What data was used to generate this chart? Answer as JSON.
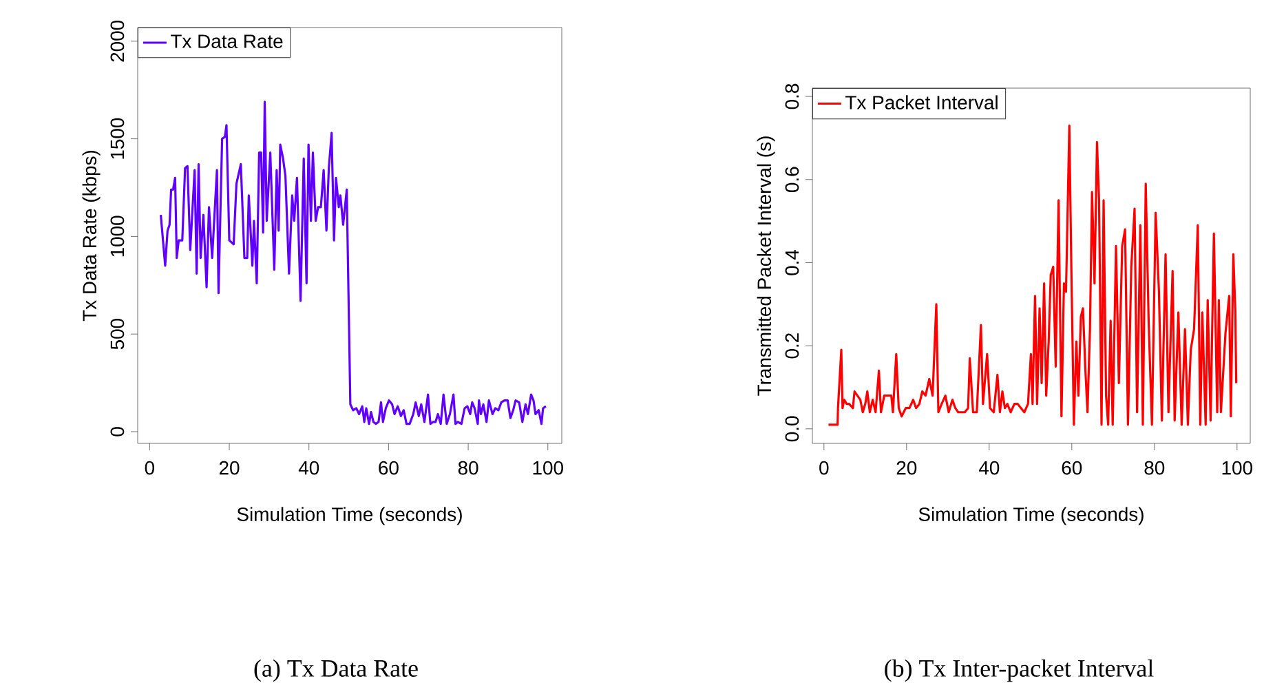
{
  "chart_data": [
    {
      "type": "line",
      "xlabel": "Simulation Time (seconds)",
      "ylabel": "Tx Data Rate (kbps)",
      "legend": "top left",
      "xlim": [
        -3,
        103.5
      ],
      "ylim": [
        -60,
        2070
      ],
      "xticks": [
        0,
        20,
        40,
        60,
        80,
        100
      ],
      "yticks": [
        0,
        500,
        1000,
        1500,
        2000
      ],
      "annotations": [
        "(a) Tx Data Rate"
      ],
      "series": [
        {
          "name": "Tx Data Rate",
          "color": "#6000ff",
          "x": [
            2.8,
            3.9,
            4.5,
            5.0,
            5.4,
            5.9,
            6.4,
            6.8,
            7.3,
            8.2,
            8.9,
            9.5,
            10.2,
            11.3,
            11.8,
            12.3,
            12.8,
            13.5,
            14.3,
            14.9,
            15.7,
            16.9,
            17.3,
            18.2,
            18.9,
            19.3,
            20.0,
            21.1,
            21.8,
            22.9,
            23.8,
            24.5,
            24.9,
            25.8,
            26.2,
            26.9,
            27.5,
            28.0,
            28.5,
            28.9,
            29.4,
            30.3,
            31.3,
            31.9,
            32.4,
            32.8,
            33.5,
            34.1,
            35.0,
            35.8,
            36.3,
            37.0,
            37.9,
            38.7,
            39.4,
            39.9,
            40.5,
            41.0,
            41.7,
            42.3,
            43.0,
            43.7,
            44.4,
            45.0,
            45.7,
            46.3,
            46.8,
            47.5,
            47.9,
            48.6,
            49.5,
            50.4,
            51.1,
            51.9,
            52.6,
            53.4,
            53.9,
            54.4,
            55.1,
            55.6,
            56.2,
            56.8,
            57.5,
            58.1,
            58.6,
            59.3,
            60.1,
            60.9,
            61.5,
            62.3,
            63.1,
            63.8,
            64.5,
            65.3,
            66.2,
            66.8,
            67.6,
            68.2,
            69.0,
            69.9,
            70.5,
            71.2,
            71.8,
            72.4,
            73.1,
            73.8,
            74.6,
            75.4,
            76.3,
            76.8,
            77.4,
            78.3,
            79.1,
            79.8,
            80.5,
            81.0,
            81.6,
            82.4,
            82.7,
            83.2,
            83.8,
            84.6,
            85.2,
            86.1,
            86.8,
            87.6,
            88.3,
            89.1,
            89.9,
            90.6,
            91.3,
            91.9,
            92.8,
            93.6,
            94.4,
            95.0,
            95.8,
            96.4,
            96.9,
            97.7,
            98.4,
            98.8,
            99.5
          ],
          "values": [
            1110,
            850,
            1030,
            1060,
            1240,
            1240,
            1300,
            890,
            980,
            980,
            1350,
            1360,
            930,
            1340,
            810,
            1370,
            890,
            1110,
            740,
            1150,
            890,
            1340,
            710,
            1500,
            1510,
            1570,
            980,
            960,
            1270,
            1370,
            890,
            890,
            1210,
            850,
            1080,
            760,
            1430,
            1430,
            1020,
            1690,
            1080,
            1430,
            830,
            1340,
            1030,
            1470,
            1400,
            1310,
            810,
            1210,
            1080,
            1300,
            670,
            1400,
            760,
            1470,
            1080,
            1430,
            1080,
            1150,
            1150,
            1340,
            1030,
            1350,
            1530,
            980,
            1300,
            1150,
            1210,
            1060,
            1240,
            140,
            110,
            120,
            90,
            130,
            50,
            120,
            40,
            100,
            50,
            40,
            50,
            150,
            50,
            120,
            160,
            140,
            90,
            130,
            80,
            110,
            40,
            40,
            90,
            150,
            80,
            140,
            50,
            190,
            40,
            50,
            50,
            90,
            40,
            190,
            40,
            90,
            190,
            40,
            50,
            40,
            120,
            130,
            90,
            150,
            120,
            40,
            160,
            90,
            140,
            50,
            160,
            90,
            120,
            110,
            150,
            160,
            160,
            70,
            110,
            160,
            150,
            50,
            140,
            90,
            190,
            160,
            90,
            110,
            40,
            120,
            130
          ]
        }
      ]
    },
    {
      "type": "line",
      "xlabel": "Simulation Time (seconds)",
      "ylabel": "Transmitted Packet Interval (s)",
      "legend": "top left",
      "xlim": [
        -2.8,
        103.2
      ],
      "ylim": [
        -0.035,
        0.82
      ],
      "xticks": [
        0,
        20,
        40,
        60,
        80,
        100
      ],
      "yticks": [
        {
          "value": 0,
          "label": "0.0"
        },
        0.2,
        0.4,
        0.6,
        0.8
      ],
      "annotations": [
        "(b) Tx Inter-packet Interval"
      ],
      "series": [
        {
          "name": "Tx Packet Interval",
          "color": "#ff0000",
          "x": [
            1.1,
            3.3,
            3.4,
            4.2,
            4.5,
            4.9,
            5.5,
            6.1,
            7.0,
            7.4,
            8.1,
            8.8,
            9.4,
            10.0,
            10.5,
            11.1,
            11.8,
            12.5,
            13.3,
            13.8,
            14.6,
            15.5,
            16.3,
            16.7,
            17.5,
            18.1,
            18.8,
            19.8,
            20.7,
            21.6,
            22.3,
            23.1,
            23.8,
            24.6,
            25.5,
            26.3,
            27.2,
            27.7,
            28.5,
            29.4,
            30.2,
            31.1,
            31.8,
            32.5,
            33.4,
            34.1,
            34.9,
            35.3,
            36.1,
            37.0,
            38.0,
            38.5,
            39.5,
            40.2,
            41.1,
            42.0,
            42.6,
            43.2,
            43.8,
            44.4,
            45.2,
            46.1,
            46.9,
            47.7,
            48.5,
            49.4,
            50.1,
            50.5,
            51.1,
            51.6,
            52.2,
            52.7,
            53.3,
            53.8,
            54.4,
            54.9,
            55.5,
            56.1,
            56.8,
            57.5,
            58.1,
            58.6,
            59.4,
            59.9,
            60.5,
            61.1,
            61.6,
            62.2,
            62.7,
            63.3,
            63.8,
            64.4,
            64.9,
            65.5,
            66.1,
            66.6,
            67.2,
            67.7,
            68.3,
            68.8,
            69.4,
            69.9,
            70.7,
            71.4,
            72.2,
            72.9,
            73.6,
            74.4,
            75.2,
            75.8,
            76.6,
            77.2,
            77.9,
            78.6,
            79.4,
            80.3,
            81.1,
            81.8,
            82.7,
            83.4,
            84.4,
            84.9,
            85.8,
            86.6,
            87.4,
            88.1,
            88.8,
            89.6,
            90.5,
            91.1,
            91.6,
            92.4,
            92.9,
            93.6,
            94.4,
            95.2,
            95.6,
            96.1,
            97.2,
            98.1,
            98.5,
            99.1,
            99.6,
            99.8
          ],
          "values": [
            0.01,
            0.01,
            0.05,
            0.19,
            0.05,
            0.07,
            0.06,
            0.06,
            0.05,
            0.09,
            0.08,
            0.07,
            0.04,
            0.06,
            0.09,
            0.04,
            0.07,
            0.04,
            0.14,
            0.04,
            0.08,
            0.08,
            0.08,
            0.04,
            0.18,
            0.05,
            0.03,
            0.05,
            0.05,
            0.07,
            0.05,
            0.06,
            0.09,
            0.08,
            0.12,
            0.08,
            0.3,
            0.04,
            0.06,
            0.08,
            0.04,
            0.07,
            0.05,
            0.04,
            0.04,
            0.04,
            0.05,
            0.17,
            0.04,
            0.04,
            0.25,
            0.06,
            0.18,
            0.05,
            0.04,
            0.13,
            0.04,
            0.09,
            0.05,
            0.06,
            0.04,
            0.06,
            0.06,
            0.05,
            0.04,
            0.06,
            0.18,
            0.06,
            0.32,
            0.06,
            0.29,
            0.11,
            0.35,
            0.08,
            0.21,
            0.37,
            0.39,
            0.15,
            0.55,
            0.03,
            0.35,
            0.33,
            0.73,
            0.38,
            0.01,
            0.21,
            0.08,
            0.27,
            0.29,
            0.14,
            0.04,
            0.24,
            0.57,
            0.35,
            0.69,
            0.55,
            0.01,
            0.55,
            0.08,
            0.01,
            0.26,
            0.01,
            0.44,
            0.11,
            0.44,
            0.48,
            0.01,
            0.39,
            0.53,
            0.04,
            0.49,
            0.01,
            0.59,
            0.26,
            0.01,
            0.52,
            0.33,
            0.02,
            0.42,
            0.04,
            0.38,
            0.02,
            0.28,
            0.01,
            0.24,
            0.01,
            0.19,
            0.24,
            0.49,
            0.01,
            0.28,
            0.01,
            0.31,
            0.02,
            0.47,
            0.04,
            0.31,
            0.04,
            0.23,
            0.32,
            0.03,
            0.42,
            0.28,
            0.11
          ]
        }
      ]
    }
  ]
}
